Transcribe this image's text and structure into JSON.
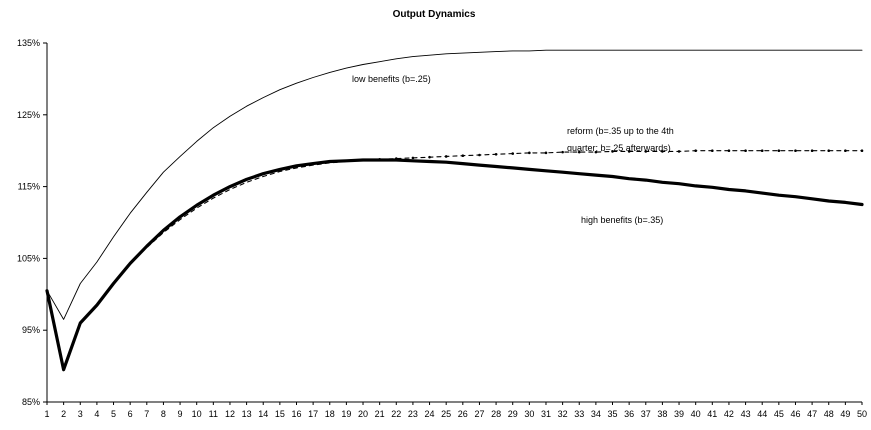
{
  "chart_data": {
    "type": "line",
    "title": "Output Dynamics",
    "xlabel": "",
    "ylabel": "",
    "x": [
      1,
      2,
      3,
      4,
      5,
      6,
      7,
      8,
      9,
      10,
      11,
      12,
      13,
      14,
      15,
      16,
      17,
      18,
      19,
      20,
      21,
      22,
      23,
      24,
      25,
      26,
      27,
      28,
      29,
      30,
      31,
      32,
      33,
      34,
      35,
      36,
      37,
      38,
      39,
      40,
      41,
      42,
      43,
      44,
      45,
      46,
      47,
      48,
      49,
      50
    ],
    "ylim": [
      85,
      135
    ],
    "yticks": [
      "85%",
      "95%",
      "105%",
      "115%",
      "125%",
      "135%"
    ],
    "xticks": [
      "1",
      "2",
      "3",
      "4",
      "5",
      "6",
      "7",
      "8",
      "9",
      "10",
      "11",
      "12",
      "13",
      "14",
      "15",
      "16",
      "17",
      "18",
      "19",
      "20",
      "21",
      "22",
      "23",
      "24",
      "25",
      "26",
      "27",
      "28",
      "29",
      "30",
      "31",
      "32",
      "33",
      "34",
      "35",
      "36",
      "37",
      "38",
      "39",
      "40",
      "41",
      "42",
      "43",
      "44",
      "45",
      "46",
      "47",
      "48",
      "49",
      "50"
    ],
    "grid": false,
    "legend": "none",
    "series": [
      {
        "name": "low benefits (b=.25)",
        "style": "thin",
        "color": "#000000",
        "values": [
          100.5,
          96.5,
          101.5,
          104.5,
          108.0,
          111.3,
          114.2,
          117.0,
          119.2,
          121.3,
          123.2,
          124.8,
          126.2,
          127.4,
          128.5,
          129.4,
          130.2,
          130.9,
          131.5,
          132.0,
          132.4,
          132.8,
          133.1,
          133.3,
          133.5,
          133.6,
          133.7,
          133.8,
          133.9,
          133.9,
          134.0,
          134.0,
          134.0,
          134.0,
          134.0,
          134.0,
          134.0,
          134.0,
          134.0,
          134.0,
          134.0,
          134.0,
          134.0,
          134.0,
          134.0,
          134.0,
          134.0,
          134.0,
          134.0,
          134.0
        ]
      },
      {
        "name": "high benefits (b=.35)",
        "style": "thick",
        "color": "#000000",
        "values": [
          100.5,
          89.5,
          96.0,
          98.5,
          101.5,
          104.3,
          106.7,
          108.9,
          110.8,
          112.4,
          113.8,
          115.0,
          116.0,
          116.8,
          117.4,
          117.9,
          118.2,
          118.5,
          118.6,
          118.7,
          118.7,
          118.7,
          118.6,
          118.5,
          118.4,
          118.2,
          118.0,
          117.8,
          117.6,
          117.4,
          117.2,
          117.0,
          116.8,
          116.6,
          116.4,
          116.1,
          115.9,
          115.6,
          115.4,
          115.1,
          114.9,
          114.6,
          114.4,
          114.1,
          113.8,
          113.6,
          113.3,
          113.0,
          112.8,
          112.5
        ]
      },
      {
        "name": "reform (b=.35 up to the 4th quarter; b=.25 afterwards)",
        "style": "dashed",
        "color": "#000000",
        "values": [
          100.5,
          89.5,
          96.0,
          98.5,
          101.5,
          104.2,
          106.5,
          108.6,
          110.4,
          112.0,
          113.4,
          114.6,
          115.6,
          116.4,
          117.1,
          117.6,
          118.0,
          118.3,
          118.5,
          118.7,
          118.8,
          118.9,
          119.0,
          119.1,
          119.2,
          119.3,
          119.4,
          119.5,
          119.6,
          119.7,
          119.7,
          119.8,
          119.8,
          119.8,
          119.9,
          119.9,
          119.9,
          119.9,
          119.9,
          120.0,
          120.0,
          120.0,
          120.0,
          120.0,
          120.0,
          120.0,
          120.0,
          120.0,
          120.0,
          120.0
        ]
      }
    ],
    "annotations": [
      {
        "lines": [
          "low benefits (b=.25)"
        ],
        "series": 0
      },
      {
        "lines": [
          "reform (b=.35 up to the 4th",
          "quarter; b=.25 afterwards)"
        ],
        "series": 2
      },
      {
        "lines": [
          "high benefits (b=.35)"
        ],
        "series": 1
      }
    ]
  }
}
